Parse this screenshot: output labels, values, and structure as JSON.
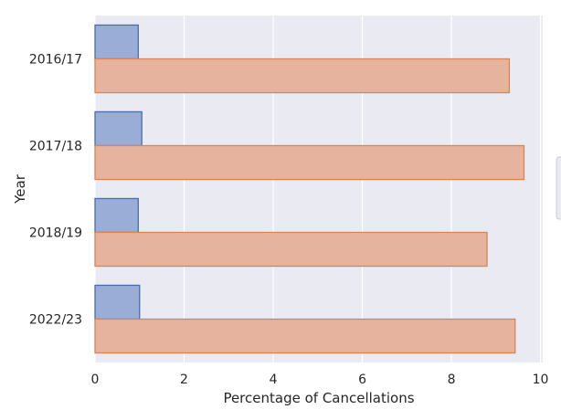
{
  "chart_data": {
    "type": "bar",
    "orientation": "horizontal",
    "title": "",
    "xlabel": "Percentage of Cancellations",
    "ylabel": "Year",
    "categories": [
      "2016/17",
      "2017/18",
      "2018/19",
      "2022/23"
    ],
    "series": [
      {
        "values": [
          0.97,
          1.05,
          0.97,
          1.0
        ]
      },
      {
        "values": [
          9.3,
          9.63,
          8.8,
          9.43
        ]
      }
    ],
    "xlim": [
      0,
      10.05
    ],
    "xticks": [
      0,
      2,
      4,
      6,
      8,
      10
    ],
    "grid": true,
    "legend_position": "right",
    "colors": {
      "background": "#eaeaf2",
      "grid": "#ffffff",
      "series_fill": [
        "#9aadd6",
        "#e5b39e"
      ],
      "series_edge": [
        "#4a6cb3",
        "#dd8452"
      ]
    }
  }
}
